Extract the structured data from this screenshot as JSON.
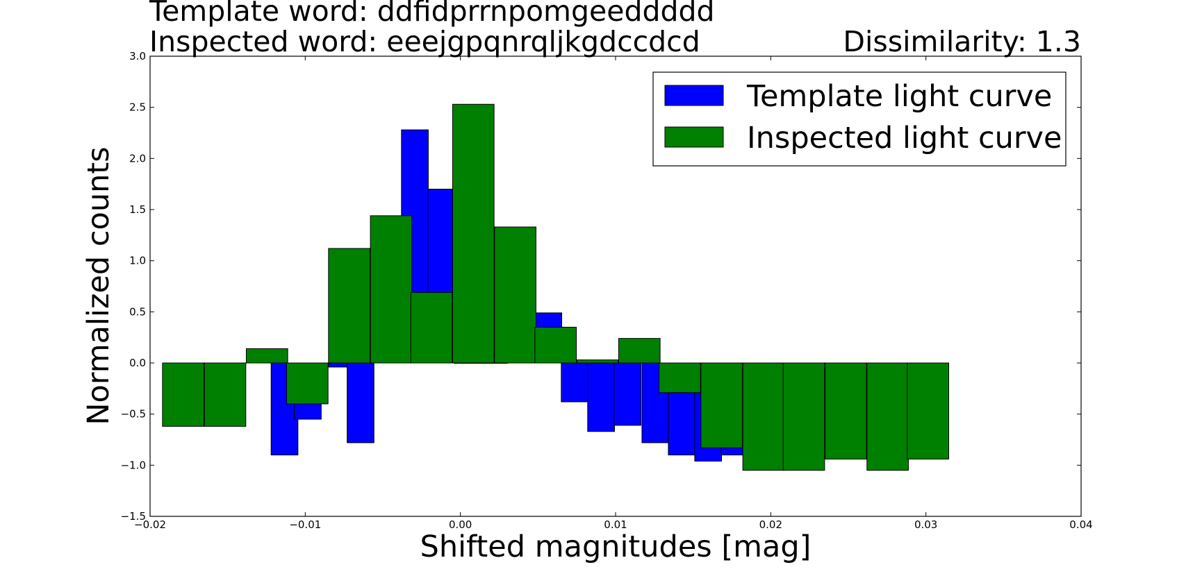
{
  "titles": {
    "template_line": "Template word: ddfidprrnpomgeeddddd",
    "inspected_line": "Inspected word: eeejgpqnrqljkgdccdcd",
    "dissimilarity": "Dissimilarity: 1.3"
  },
  "chart_data": {
    "type": "bar",
    "xlabel": "Shifted magnitudes [mag]",
    "ylabel": "Normalized counts",
    "xlim": [
      -0.02,
      0.04
    ],
    "ylim": [
      -1.5,
      3.0
    ],
    "xticks": [
      "−0.02",
      "−0.01",
      "0.00",
      "0.01",
      "0.02",
      "0.03",
      "0.04"
    ],
    "xtick_values": [
      -0.02,
      -0.01,
      0.0,
      0.01,
      0.02,
      0.03,
      0.04
    ],
    "yticks": [
      "−1.5",
      "−1.0",
      "−0.5",
      "0.0",
      "0.5",
      "1.0",
      "1.5",
      "2.0",
      "2.5",
      "3.0"
    ],
    "ytick_values": [
      -1.5,
      -1.0,
      -0.5,
      0.0,
      0.5,
      1.0,
      1.5,
      2.0,
      2.5,
      3.0
    ],
    "grid": false,
    "legend_position": "top-right",
    "series": [
      {
        "name": "Template light curve",
        "color": "#0000ff",
        "bin_width": 0.00173,
        "bins": [
          {
            "x0": -0.0122,
            "y": -0.9
          },
          {
            "x0": -0.0107,
            "y": -0.55
          },
          {
            "x0": -0.0085,
            "y": -0.04
          },
          {
            "x0": -0.0073,
            "y": -0.78
          },
          {
            "x0": -0.0038,
            "y": 2.28
          },
          {
            "x0": -0.0021,
            "y": 1.7
          },
          {
            "x0": -0.0004,
            "y": 0.0
          },
          {
            "x0": 0.0013,
            "y": 0.0
          },
          {
            "x0": 0.0048,
            "y": 0.49
          },
          {
            "x0": 0.0065,
            "y": -0.38
          },
          {
            "x0": 0.0082,
            "y": -0.67
          },
          {
            "x0": 0.0099,
            "y": -0.61
          },
          {
            "x0": 0.0117,
            "y": -0.78
          },
          {
            "x0": 0.0134,
            "y": -0.9
          },
          {
            "x0": 0.0151,
            "y": -0.96
          },
          {
            "x0": 0.0168,
            "y": -0.9
          }
        ]
      },
      {
        "name": "Inspected light curve",
        "color": "#008000",
        "bin_width": 0.00267,
        "bins": [
          {
            "x0": -0.0192,
            "y": -0.62
          },
          {
            "x0": -0.0165,
            "y": -0.62
          },
          {
            "x0": -0.0138,
            "y": 0.14
          },
          {
            "x0": -0.0112,
            "y": -0.4
          },
          {
            "x0": -0.0085,
            "y": 1.12
          },
          {
            "x0": -0.0058,
            "y": 1.44
          },
          {
            "x0": -0.0032,
            "y": 0.69
          },
          {
            "x0": -0.0005,
            "y": 2.53
          },
          {
            "x0": 0.0022,
            "y": 1.33
          },
          {
            "x0": 0.0048,
            "y": 0.35
          },
          {
            "x0": 0.0075,
            "y": 0.03
          },
          {
            "x0": 0.0102,
            "y": 0.24
          },
          {
            "x0": 0.0128,
            "y": -0.29
          },
          {
            "x0": 0.0155,
            "y": -0.83
          },
          {
            "x0": 0.0182,
            "y": -1.05
          },
          {
            "x0": 0.0208,
            "y": -1.05
          },
          {
            "x0": 0.0235,
            "y": -0.94
          },
          {
            "x0": 0.0262,
            "y": -1.05
          },
          {
            "x0": 0.0288,
            "y": -0.94
          }
        ]
      }
    ]
  }
}
